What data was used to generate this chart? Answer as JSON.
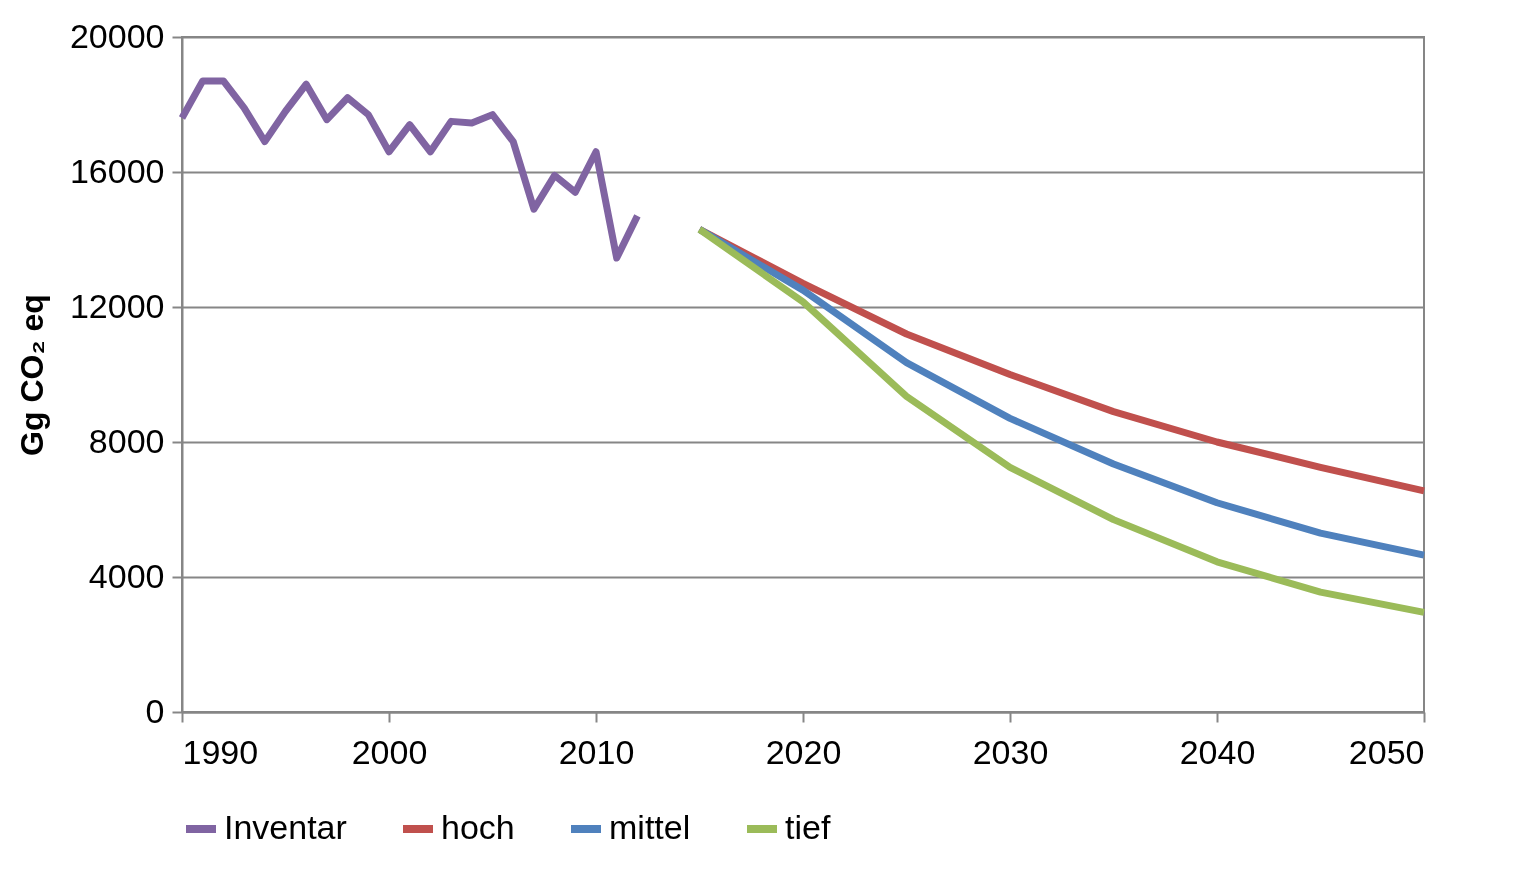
{
  "chart_data": {
    "type": "line",
    "ylabel": "Gg CO₂ eq",
    "xlim": [
      1990,
      2050
    ],
    "xticks": [
      1990,
      2000,
      2010,
      2020,
      2030,
      2040,
      2050
    ],
    "ylim": [
      0,
      20000
    ],
    "yticks": [
      0,
      4000,
      8000,
      12000,
      16000,
      20000
    ],
    "grid": "y",
    "legend": "bottom",
    "line_style": "solid",
    "series": [
      {
        "name": "Inventar",
        "color": "#8064a2",
        "x": [
          1990,
          1991,
          1992,
          1993,
          1994,
          1995,
          1996,
          1997,
          1998,
          1999,
          2000,
          2001,
          2002,
          2003,
          2004,
          2005,
          2006,
          2007,
          2008,
          2009,
          2010,
          2011,
          2012
        ],
        "values": [
          17600,
          18700,
          18700,
          17900,
          16900,
          17800,
          18600,
          17550,
          18200,
          17700,
          16600,
          17400,
          16600,
          17500,
          17450,
          17700,
          16900,
          14900,
          15900,
          15400,
          16600,
          13450,
          14700
        ]
      },
      {
        "name": "hoch",
        "color": "#c0504d",
        "x": [
          2015,
          2020,
          2025,
          2030,
          2035,
          2040,
          2045,
          2050
        ],
        "values": [
          14300,
          12700,
          11200,
          10000,
          8900,
          8000,
          7250,
          6550
        ]
      },
      {
        "name": "mittel",
        "color": "#4f81bd",
        "x": [
          2015,
          2020,
          2025,
          2030,
          2035,
          2040,
          2045,
          2050
        ],
        "values": [
          14300,
          12500,
          10350,
          8700,
          7350,
          6200,
          5300,
          4650
        ]
      },
      {
        "name": "tief",
        "color": "#9bbb59",
        "x": [
          2015,
          2020,
          2025,
          2030,
          2035,
          2040,
          2045,
          2050
        ],
        "values": [
          14300,
          12150,
          9350,
          7250,
          5700,
          4450,
          3550,
          2950
        ]
      }
    ]
  }
}
